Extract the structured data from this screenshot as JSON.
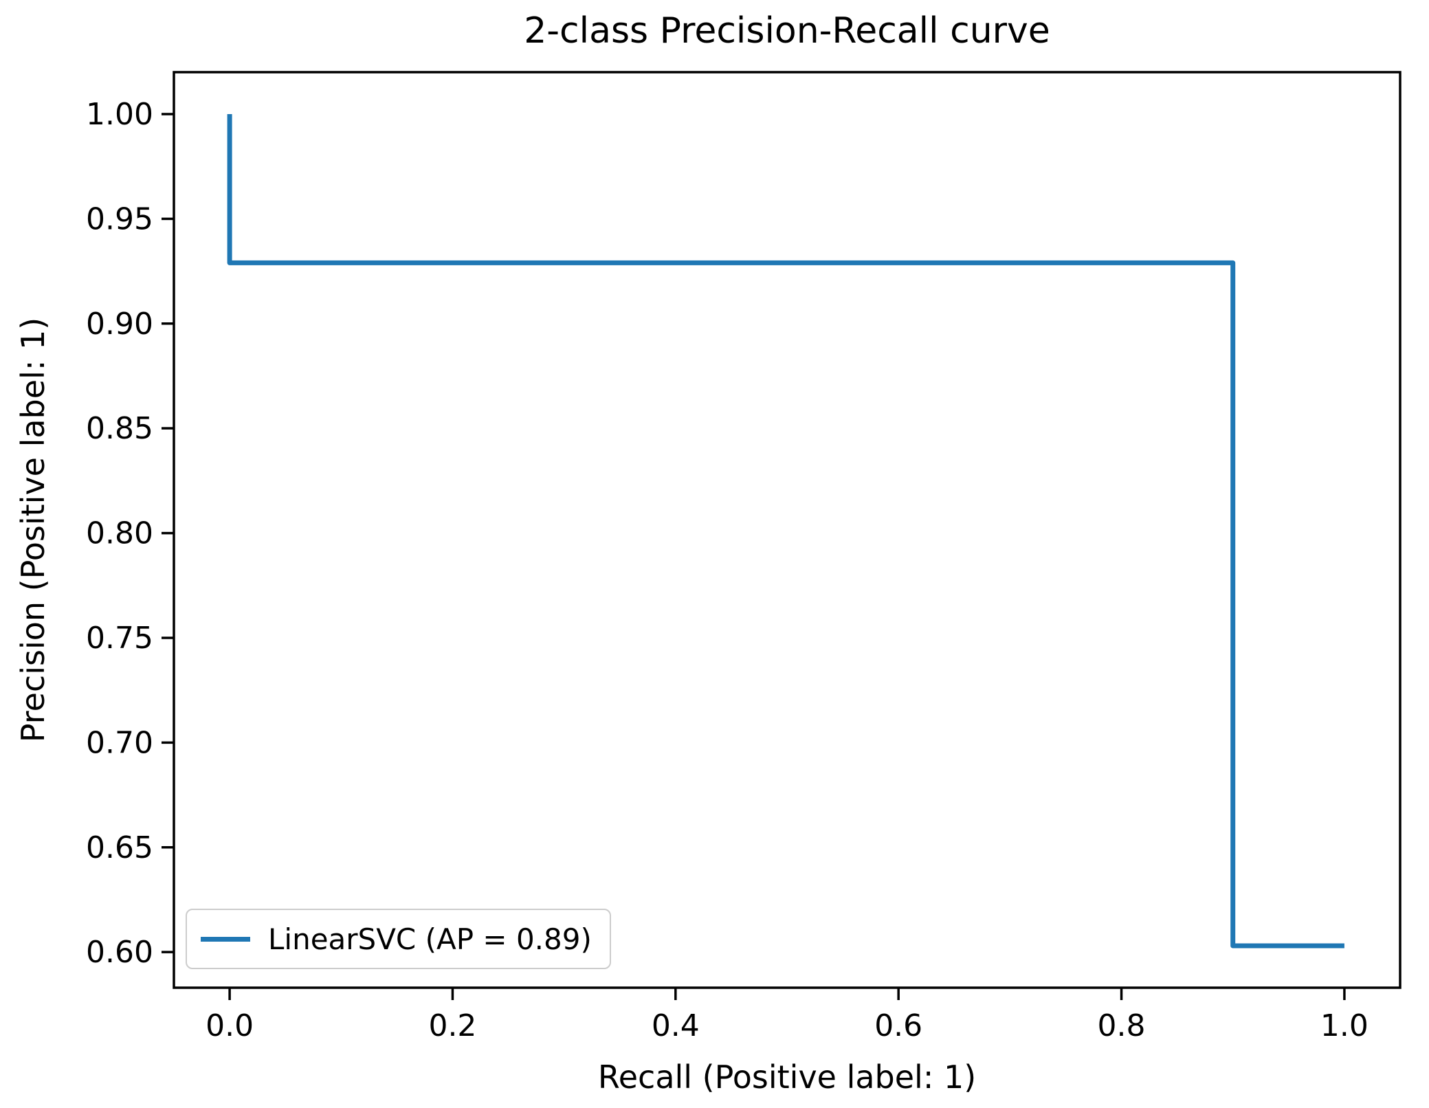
{
  "chart_data": {
    "type": "line",
    "subtype": "step-post",
    "title": "2-class Precision-Recall curve",
    "xlabel": "Recall (Positive label: 1)",
    "ylabel": "Precision (Positive label: 1)",
    "xlim": [
      -0.05,
      1.05
    ],
    "ylim": [
      0.583,
      1.02
    ],
    "grid": false,
    "xticks": {
      "values": [
        0.0,
        0.2,
        0.4,
        0.6,
        0.8,
        1.0
      ],
      "labels": [
        "0.0",
        "0.2",
        "0.4",
        "0.6",
        "0.8",
        "1.0"
      ]
    },
    "yticks": {
      "values": [
        0.6,
        0.65,
        0.7,
        0.75,
        0.8,
        0.85,
        0.9,
        0.95,
        1.0
      ],
      "labels": [
        "0.60",
        "0.65",
        "0.70",
        "0.75",
        "0.80",
        "0.85",
        "0.90",
        "0.95",
        "1.00"
      ]
    },
    "series": [
      {
        "name": "LinearSVC (AP = 0.89)",
        "color": "#1f77b4",
        "points": [
          [
            0.0,
            1.0
          ],
          [
            0.0,
            0.929
          ],
          [
            0.9,
            0.929
          ],
          [
            0.9,
            0.603
          ],
          [
            1.0,
            0.603
          ]
        ]
      }
    ],
    "legend": {
      "position": "lower left"
    }
  },
  "colors": {
    "line": "#1f77b4",
    "text": "#000000",
    "spine": "#000000",
    "legend_border": "#cccccc",
    "background": "#ffffff"
  }
}
